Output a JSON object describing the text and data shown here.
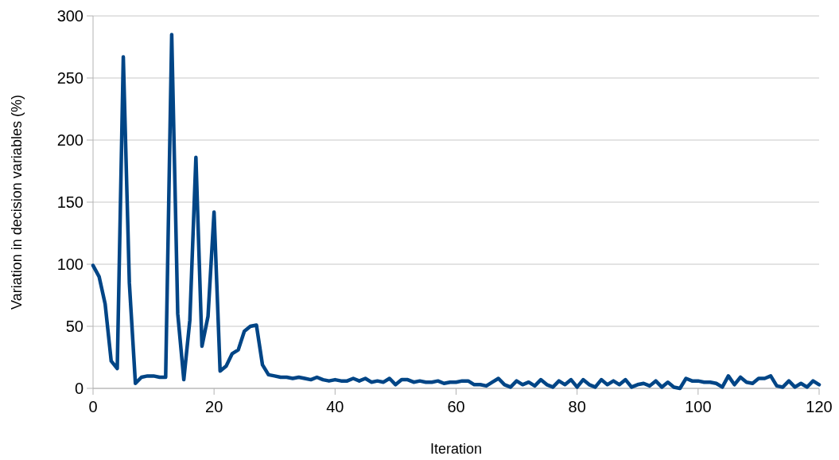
{
  "chart_data": {
    "type": "line",
    "xlabel": "Iteration",
    "ylabel": "Variation in decision variables (%)",
    "xlim": [
      0,
      120
    ],
    "xticks": [
      0,
      20,
      40,
      60,
      80,
      100,
      120
    ],
    "ylim": [
      0,
      300
    ],
    "yticks": [
      0,
      50,
      100,
      150,
      200,
      250,
      300
    ],
    "grid": "y",
    "marker": "none",
    "line_style": "solid",
    "series": [
      {
        "color": "#004586",
        "x": [
          0,
          1,
          2,
          3,
          4,
          5,
          6,
          7,
          8,
          9,
          10,
          11,
          12,
          13,
          14,
          15,
          16,
          17,
          18,
          19,
          20,
          21,
          22,
          23,
          24,
          25,
          26,
          27,
          28,
          29,
          30,
          31,
          32,
          33,
          34,
          35,
          36,
          37,
          38,
          39,
          40,
          41,
          42,
          43,
          44,
          45,
          46,
          47,
          48,
          49,
          50,
          51,
          52,
          53,
          54,
          55,
          56,
          57,
          58,
          59,
          60,
          61,
          62,
          63,
          64,
          65,
          66,
          67,
          68,
          69,
          70,
          71,
          72,
          73,
          74,
          75,
          76,
          77,
          78,
          79,
          80,
          81,
          82,
          83,
          84,
          85,
          86,
          87,
          88,
          89,
          90,
          91,
          92,
          93,
          94,
          95,
          96,
          97,
          98,
          99,
          100,
          101,
          102,
          103,
          104,
          105,
          106,
          107,
          108,
          109,
          110,
          111,
          112,
          113,
          114,
          115,
          116,
          117,
          118,
          119,
          120
        ],
        "values": [
          99,
          90,
          68,
          22,
          16,
          267,
          85,
          4,
          9,
          10,
          10,
          9,
          9,
          285,
          60,
          7,
          55,
          186,
          34,
          58,
          142,
          14,
          18,
          28,
          31,
          46,
          50,
          51,
          19,
          11,
          10,
          9,
          9,
          8,
          9,
          8,
          7,
          9,
          7,
          6,
          7,
          6,
          6,
          8,
          6,
          8,
          5,
          6,
          5,
          8,
          3,
          7,
          7,
          5,
          6,
          5,
          5,
          6,
          4,
          5,
          5,
          6,
          6,
          3,
          3,
          2,
          5,
          8,
          3,
          1,
          6,
          3,
          5,
          2,
          7,
          3,
          1,
          6,
          3,
          7,
          1,
          7,
          3,
          1,
          7,
          3,
          6,
          3,
          7,
          1,
          3,
          4,
          2,
          6,
          1,
          5,
          1,
          0,
          8,
          6,
          6,
          5,
          5,
          4,
          1,
          10,
          3,
          9,
          5,
          4,
          8,
          8,
          10,
          2,
          1,
          6,
          1,
          4,
          1,
          6,
          3
        ]
      }
    ]
  }
}
